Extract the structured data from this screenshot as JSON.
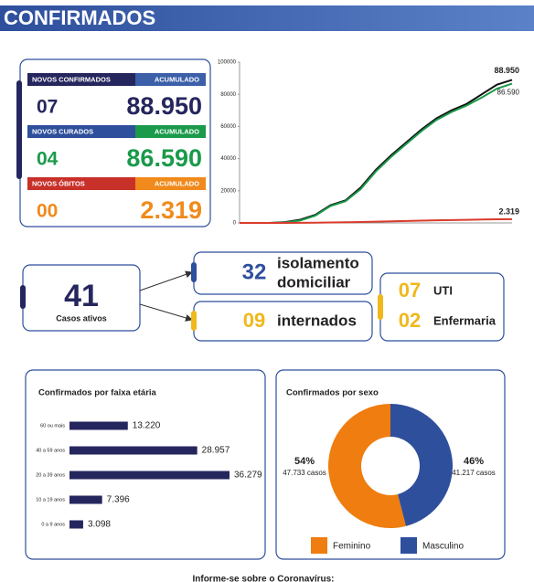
{
  "header": {
    "title": "CONFIRMADOS"
  },
  "stats": [
    {
      "label": "NOVOS CONFIRMADOS",
      "total_label": "ACUMULADO",
      "new": "07",
      "total": "88.950",
      "color": "#26265e",
      "accent": "#3b5fa8",
      "text_color": "#26265e"
    },
    {
      "label": "NOVOS CURADOS",
      "total_label": "ACUMULADO",
      "new": "04",
      "total": "86.590",
      "color": "#2e4f9c",
      "accent": "#1a9a4a",
      "text_color": "#1a9a4a"
    },
    {
      "label": "NOVOS ÓBITOS",
      "total_label": "ACUMULADO",
      "new": "00",
      "total": "2.319",
      "color": "#c8302a",
      "accent": "#f08a1c",
      "text_color": "#f08a1c"
    }
  ],
  "active": {
    "total": "41",
    "total_label": "Casos ativos",
    "home": "32",
    "home_label": [
      "isolamento",
      "domiciliar"
    ],
    "hospital": "09",
    "hospital_label": "internados",
    "icu": "07",
    "icu_label": "UTI",
    "ward": "02",
    "ward_label": "Enfermaria"
  },
  "footer": {
    "text": "Informe-se sobre o Coronavírus:"
  },
  "chart_data": [
    {
      "type": "line",
      "categories": [
        null,
        null,
        null,
        null,
        null,
        null,
        null,
        null,
        null,
        null,
        null,
        null,
        null,
        null,
        null,
        null,
        null,
        null,
        null
      ],
      "ylim": [
        0,
        100000
      ],
      "yticks": [
        0,
        20000,
        40000,
        60000,
        80000,
        100000
      ],
      "series": [
        {
          "name": null,
          "color": "#111111",
          "label": "88.950",
          "values": [
            0,
            0,
            0,
            500,
            2000,
            5000,
            11000,
            14000,
            22000,
            33000,
            42000,
            50000,
            58000,
            65000,
            70000,
            74000,
            80000,
            86000,
            88950
          ]
        },
        {
          "name": null,
          "color": "#1a9a4a",
          "label": "86.590",
          "values": [
            0,
            0,
            0,
            300,
            1500,
            4500,
            10500,
            13500,
            21000,
            32000,
            41000,
            49000,
            57000,
            64000,
            69000,
            73000,
            78000,
            83500,
            86590
          ]
        },
        {
          "name": null,
          "color": "#d93b2b",
          "label": "2.319",
          "values": [
            0,
            0,
            0,
            20,
            60,
            150,
            300,
            400,
            600,
            800,
            1000,
            1200,
            1400,
            1600,
            1800,
            1950,
            2100,
            2250,
            2319
          ]
        }
      ]
    },
    {
      "type": "hbar",
      "title": "Confirmados por faixa etária",
      "color": "#26265e",
      "categories": [
        "60 ou mais",
        "40 a 59 anos",
        "20 a 39 anos",
        "10 a 19 anos",
        "0 a 9 anos"
      ],
      "values": [
        13220,
        28957,
        36279,
        7396,
        3098
      ],
      "value_labels": [
        "13.220",
        "28.957",
        "36.279",
        "7.396",
        "3.098"
      ]
    },
    {
      "type": "donut",
      "title": "Confirmados por sexo",
      "categories": [
        "Masculino",
        "Feminino"
      ],
      "values": [
        46,
        54
      ],
      "value_labels": [
        "46%",
        "54%"
      ],
      "sub_labels": [
        "41.217 casos",
        "47.733 casos"
      ],
      "colors": [
        "#2e4f9c",
        "#ef7d0f"
      ]
    }
  ]
}
